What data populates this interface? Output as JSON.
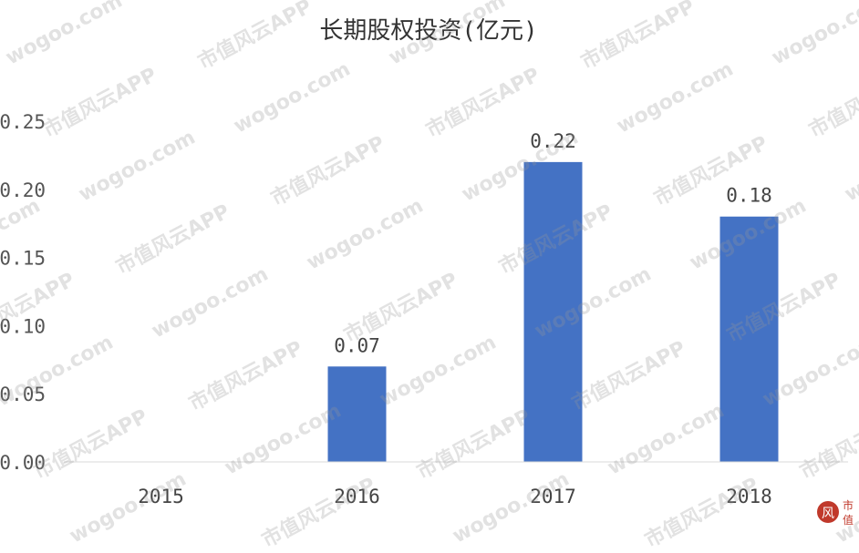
{
  "chart_data": {
    "type": "bar",
    "title": "长期股权投资(亿元)",
    "categories": [
      "2015",
      "2016",
      "2017",
      "2018"
    ],
    "values": [
      0,
      0.07,
      0.22,
      0.18
    ],
    "data_labels": [
      "",
      "0.07",
      "0.22",
      "0.18"
    ],
    "yticks": [
      "0.00",
      "0.05",
      "0.10",
      "0.15",
      "0.20",
      "0.25"
    ],
    "ylim": [
      0,
      0.25
    ],
    "grid": false,
    "bar_color": "#4472c4"
  },
  "watermarks": [
    "wogoo.com",
    "市值风云APP"
  ],
  "logo": "市值"
}
